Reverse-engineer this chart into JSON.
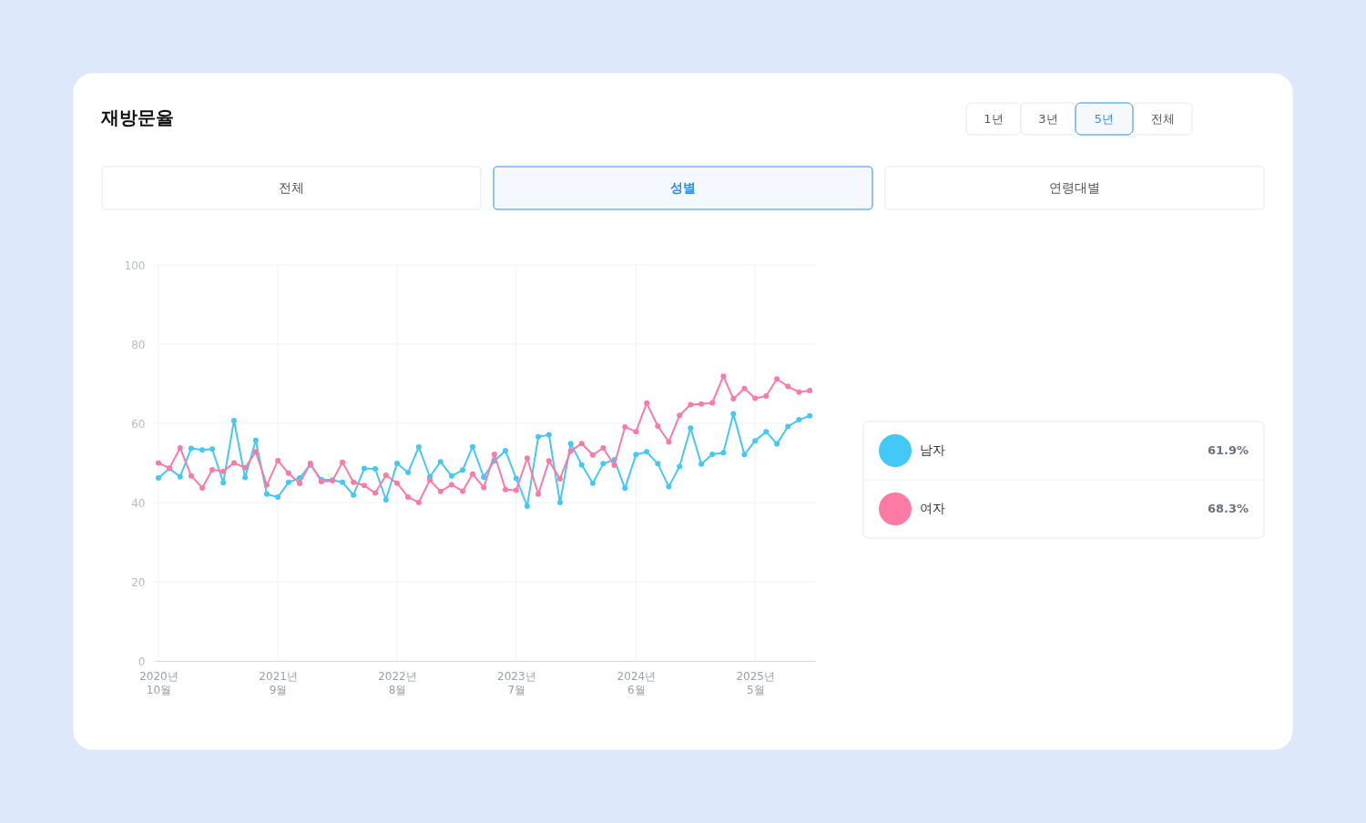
{
  "chart_data": {
    "type": "line",
    "title": "재방문율",
    "x": [
      "2020-10",
      "2020-11",
      "2020-12",
      "2021-01",
      "2021-02",
      "2021-03",
      "2021-04",
      "2021-05",
      "2021-06",
      "2021-07",
      "2021-08",
      "2021-09",
      "2021-10",
      "2021-11",
      "2021-12",
      "2022-01",
      "2022-02",
      "2022-03",
      "2022-04",
      "2022-05",
      "2022-06",
      "2022-07",
      "2022-08",
      "2022-09",
      "2022-10",
      "2022-11",
      "2022-12",
      "2023-01",
      "2023-02",
      "2023-03",
      "2023-04",
      "2023-05",
      "2023-06",
      "2023-07",
      "2023-08",
      "2023-09",
      "2023-10",
      "2023-11",
      "2023-12",
      "2024-01",
      "2024-02",
      "2024-03",
      "2024-04",
      "2024-05",
      "2024-06",
      "2024-07",
      "2024-08",
      "2024-09",
      "2024-10",
      "2024-11",
      "2024-12",
      "2025-01",
      "2025-02",
      "2025-03",
      "2025-04",
      "2025-05",
      "2025-06",
      "2025-07",
      "2025-08",
      "2025-09",
      "2025-10"
    ],
    "series": [
      {
        "name": "남자",
        "color": "#44c8f8",
        "values": [
          46.2,
          48.6,
          46.5,
          53.7,
          53.3,
          53.5,
          45.0,
          60.7,
          46.3,
          55.7,
          42.1,
          41.4,
          45.1,
          46.2,
          49.5,
          45.8,
          45.7,
          45.1,
          41.9,
          48.6,
          48.5,
          40.7,
          49.9,
          47.6,
          54.0,
          46.5,
          50.3,
          46.7,
          48.2,
          54.1,
          46.4,
          50.5,
          53.1,
          46.1,
          39.1,
          56.6,
          57.1,
          40.0,
          54.9,
          49.5,
          44.9,
          49.8,
          50.8,
          43.6,
          52.1,
          52.8,
          49.8,
          44.0,
          49.1,
          58.8,
          49.7,
          52.2,
          52.6,
          62.4,
          52.1,
          55.6,
          57.9,
          54.8,
          59.2,
          60.9,
          61.9
        ]
      },
      {
        "name": "여자",
        "color": "#fc7aa3",
        "values": [
          50.0,
          48.7,
          53.8,
          46.7,
          43.7,
          48.3,
          47.9,
          50.0,
          48.8,
          52.8,
          44.4,
          50.6,
          47.4,
          44.8,
          49.9,
          45.3,
          45.5,
          50.2,
          45.1,
          44.3,
          42.4,
          46.9,
          44.9,
          41.4,
          40.0,
          45.7,
          42.8,
          44.5,
          42.9,
          47.2,
          43.8,
          52.2,
          43.3,
          43.1,
          51.2,
          42.1,
          50.5,
          46.0,
          53.0,
          54.9,
          52.0,
          53.8,
          49.4,
          59.1,
          57.9,
          65.1,
          59.3,
          55.3,
          62.0,
          64.7,
          64.9,
          65.2,
          71.9,
          66.2,
          68.8,
          66.3,
          66.9,
          71.2,
          69.3,
          67.9,
          68.3
        ]
      }
    ],
    "xlim": [
      "2020-09-21",
      "2025-10-16"
    ],
    "xticks": [
      {
        "value": "2020-10",
        "label": "2020년 10월"
      },
      {
        "value": "2021-09",
        "label": "2021년 9월"
      },
      {
        "value": "2022-08",
        "label": "2022년 8월"
      },
      {
        "value": "2023-07",
        "label": "2023년 7월"
      },
      {
        "value": "2024-06",
        "label": "2024년 6월"
      },
      {
        "value": "2025-05",
        "label": "2025년 5월"
      }
    ],
    "ylim": [
      0,
      100
    ],
    "yticks": [
      0,
      20,
      40,
      60,
      80,
      100
    ],
    "grid": true,
    "legend": "right",
    "marker": "circle",
    "line_style": "solid",
    "annotations": [
      "1년",
      "3년",
      "5년",
      "전체",
      "전체",
      "성별",
      "연령대별",
      "61.9%",
      "68.3%"
    ]
  }
}
